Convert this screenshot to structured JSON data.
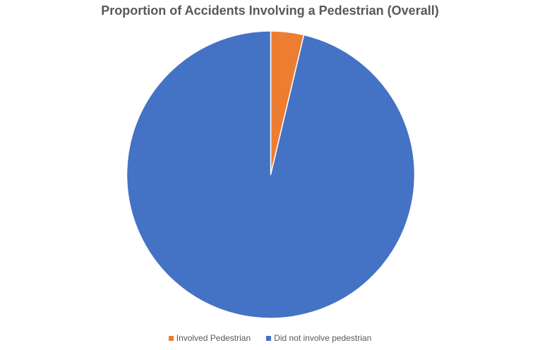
{
  "chart_data": {
    "type": "pie",
    "title": "Proportion of Accidents Involving a Pedestrian (Overall)",
    "slices": [
      {
        "label": "Involved Pedestrian",
        "value": 3.7,
        "color": "#ED7D31"
      },
      {
        "label": "Did not involve pedestrian",
        "value": 96.3,
        "color": "#4472C4"
      }
    ],
    "start_angle_deg": 0,
    "direction": "clockwise",
    "legend_position": "bottom"
  },
  "legend": {
    "items": [
      {
        "label": "Involved Pedestrian",
        "color": "#ED7D31"
      },
      {
        "label": "Did not involve pedestrian",
        "color": "#4472C4"
      }
    ]
  }
}
